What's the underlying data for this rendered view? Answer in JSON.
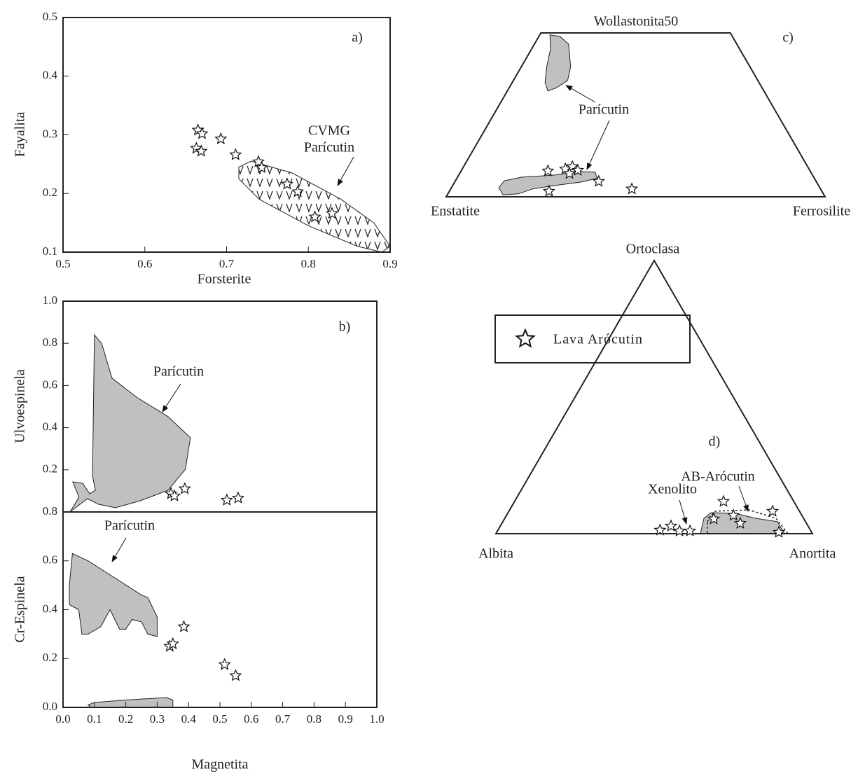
{
  "chart_data": [
    {
      "type": "scatter",
      "panel_label": "a)",
      "xlabel": "Forsterite",
      "ylabel": "Fayalita",
      "xlim": [
        0.5,
        0.9
      ],
      "ylim": [
        0.1,
        0.5
      ],
      "xticks": [
        0.5,
        0.6,
        0.7,
        0.8,
        0.9
      ],
      "yticks": [
        0.1,
        0.2,
        0.3,
        0.4,
        0.5
      ],
      "x": [
        0.665,
        0.67,
        0.663,
        0.669,
        0.693,
        0.711,
        0.739,
        0.743,
        0.774,
        0.787,
        0.808,
        0.829
      ],
      "y": [
        0.308,
        0.302,
        0.277,
        0.272,
        0.293,
        0.266,
        0.254,
        0.244,
        0.216,
        0.203,
        0.16,
        0.166
      ],
      "regions": [
        {
          "label": [
            "CVMG",
            "Parícutin"
          ],
          "pattern": "v",
          "x": [
            0.715,
            0.73,
            0.78,
            0.84,
            0.88,
            0.9,
            0.89,
            0.86,
            0.8,
            0.74,
            0.715
          ],
          "y": [
            0.245,
            0.255,
            0.235,
            0.19,
            0.15,
            0.11,
            0.1,
            0.11,
            0.145,
            0.19,
            0.225
          ]
        }
      ]
    },
    {
      "type": "scatter",
      "panel_label": "b)",
      "ylabel": "Ulvoespinela",
      "xlim": [
        0,
        1
      ],
      "ylim": [
        0,
        1
      ],
      "yticks": [
        0.2,
        0.4,
        0.6,
        0.8,
        {
          "value": 1,
          "label": "1.0"
        }
      ],
      "x": [
        0.344,
        0.355,
        0.388,
        0.522,
        0.558
      ],
      "y": [
        0.086,
        0.076,
        0.11,
        0.056,
        0.066
      ],
      "regions": [
        {
          "label": [
            "Parícutin"
          ],
          "fill": "#c0c0c0",
          "x": [
            0.1,
            0.123,
            0.156,
            0.234,
            0.335,
            0.406,
            0.39,
            0.335,
            0.246,
            0.167,
            0.112,
            0.078,
            0.022,
            0.051,
            0.031,
            0.063,
            0.085,
            0.103,
            0.094
          ],
          "y": [
            0.84,
            0.8,
            0.635,
            0.545,
            0.452,
            0.352,
            0.203,
            0.103,
            0.053,
            0.02,
            0.037,
            0.063,
            0,
            0.07,
            0.143,
            0.136,
            0.086,
            0.103,
            0.17
          ]
        }
      ]
    },
    {
      "type": "scatter",
      "xlabel": "Magnetita",
      "ylabel": "Cr-Espinela",
      "xlim": [
        0,
        1
      ],
      "ylim": [
        0,
        0.8
      ],
      "xticks": [
        {
          "value": 0,
          "label": "0.0"
        },
        0.1,
        0.2,
        0.3,
        0.4,
        0.5,
        0.6,
        0.7,
        0.8,
        0.9,
        {
          "value": 1,
          "label": "1.0"
        }
      ],
      "yticks": [
        {
          "value": 0,
          "label": "0.0"
        },
        0.2,
        0.4,
        0.6,
        0.8
      ],
      "x": [
        0.34,
        0.35,
        0.385,
        0.515,
        0.55
      ],
      "y": [
        0.25,
        0.26,
        0.33,
        0.175,
        0.13
      ],
      "regions": [
        {
          "label": [
            "Parícutin"
          ],
          "fill": "#c0c0c0",
          "x": [
            0.03,
            0.08,
            0.25,
            0.27,
            0.3,
            0.3,
            0.27,
            0.25,
            0.22,
            0.2,
            0.18,
            0.15,
            0.12,
            0.08,
            0.06,
            0.05,
            0.02,
            0.02
          ],
          "y": [
            0.63,
            0.6,
            0.46,
            0.45,
            0.37,
            0.29,
            0.3,
            0.35,
            0.36,
            0.32,
            0.32,
            0.4,
            0.33,
            0.3,
            0.3,
            0.4,
            0.42,
            0.5
          ]
        },
        {
          "fill": "#c0c0c0",
          "x": [
            0.08,
            0.1,
            0.2,
            0.33,
            0.35,
            0.35,
            0.15,
            0.09
          ],
          "y": [
            0.01,
            0.02,
            0.03,
            0.04,
            0.03,
            0,
            0,
            0
          ]
        }
      ]
    },
    {
      "type": "ternary",
      "panel_label": "c)",
      "top_label": "Wollastonita50",
      "left_label": "Enstatite",
      "right_label": "Ferrosilite",
      "xlim": [
        0,
        100
      ],
      "ylim": [
        0,
        50
      ],
      "x": [
        22.9,
        27.2,
        28.7,
        29.0,
        30.7,
        37.9,
        47.8,
        26.3
      ],
      "y": [
        7.9,
        8.5,
        9.2,
        7.1,
        8.1,
        4.7,
        2.4,
        1.7
      ],
      "regions": [
        {
          "label": [
            "Parícutin"
          ],
          "fill": "#c0c0c0",
          "x": [
            2.7,
            5.6,
            9.0,
            13.0,
            14.3,
            12.5,
            10.7,
            8.7,
            6.7,
            5.0
          ],
          "y": [
            49.4,
            48.9,
            46.6,
            39.7,
            35.5,
            33.3,
            32.3,
            34.8,
            39.7,
            45.1
          ]
        },
        {
          "fill": "#c0c0c0",
          "x": [
            12.9,
            17.0,
            25.0,
            31.8,
            35.6,
            37.0,
            33.4,
            26.6,
            21.6,
            18.6,
            14.7,
            12.5
          ],
          "y": [
            4.9,
            6.0,
            6.6,
            7.7,
            7.5,
            5.6,
            4.5,
            3.4,
            2.4,
            0.9,
            0.6,
            2.8
          ]
        }
      ]
    },
    {
      "type": "ternary",
      "panel_label": "d)",
      "top_label": "Ortoclasa",
      "left_label": "Albita",
      "right_label": "Anortita",
      "xlim": [
        0,
        100
      ],
      "ylim": [
        0,
        100
      ],
      "x": [
        66.0,
        66.1,
        71.7,
        75.3,
        83.3,
        89.1,
        51.2,
        53.9,
        57.5,
        60.8
      ],
      "y": [
        11.8,
        5.4,
        6.7,
        3.8,
        8.2,
        0.5,
        1.3,
        2.8,
        1.0,
        1.0
      ],
      "annotations": [
        "Xenolito"
      ],
      "regions": [
        {
          "fill": "#c0c0c0",
          "x": [
            62.9,
            64.1,
            72.0,
            79.5,
            86.7,
            91.2,
            64.6
          ],
          "y": [
            5.6,
            7.7,
            7.4,
            5.6,
            4.4,
            0,
            0
          ]
        },
        {
          "label": [
            "AB-Arócutin"
          ],
          "fill": "none",
          "dashed": true,
          "x": [
            64.6,
            64.9,
            75.7,
            85.7,
            92.3,
            66.8
          ],
          "y": [
            4.4,
            8.2,
            8.7,
            5.6,
            0,
            0
          ]
        }
      ]
    }
  ],
  "legend": {
    "label": "Lava Arócutin"
  }
}
